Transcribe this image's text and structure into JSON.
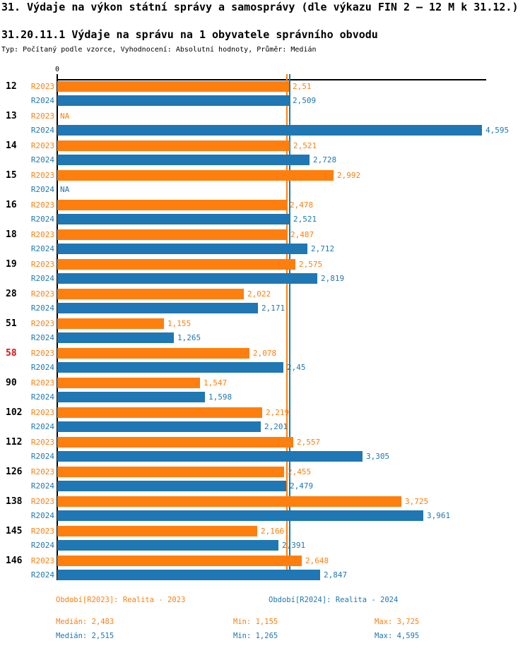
{
  "title": "31. Výdaje na výkon státní správy a samosprávy (dle výkazu FIN 2 – 12 M k 31.12.)",
  "subtitle": "31.20.11.1 Výdaje na správu na 1 obyvatele správního obvodu",
  "type_line": "Typ: Počítaný podle vzorce, Vyhodnocení: Absolutní hodnoty, Průměr: Medián",
  "colors": {
    "r2023": "#ff7f0e",
    "r2024": "#1f77b4",
    "highlight_id": "#e01010",
    "axis": "#000000"
  },
  "axis": {
    "zero_label": "0"
  },
  "series_labels": {
    "r2023": "R2023",
    "r2024": "R2024"
  },
  "rows": [
    {
      "id": "12",
      "highlight": false,
      "r2023": {
        "value": 2.51,
        "label": "2,51"
      },
      "r2024": {
        "value": 2.509,
        "label": "2,509"
      }
    },
    {
      "id": "13",
      "highlight": false,
      "r2023": {
        "value": null,
        "label": "NA"
      },
      "r2024": {
        "value": 4.595,
        "label": "4,595"
      }
    },
    {
      "id": "14",
      "highlight": false,
      "r2023": {
        "value": 2.521,
        "label": "2,521"
      },
      "r2024": {
        "value": 2.728,
        "label": "2,728"
      }
    },
    {
      "id": "15",
      "highlight": false,
      "r2023": {
        "value": 2.992,
        "label": "2,992"
      },
      "r2024": {
        "value": null,
        "label": "NA"
      }
    },
    {
      "id": "16",
      "highlight": false,
      "r2023": {
        "value": 2.478,
        "label": "2,478"
      },
      "r2024": {
        "value": 2.521,
        "label": "2,521"
      }
    },
    {
      "id": "18",
      "highlight": false,
      "r2023": {
        "value": 2.487,
        "label": "2,487"
      },
      "r2024": {
        "value": 2.712,
        "label": "2,712"
      }
    },
    {
      "id": "19",
      "highlight": false,
      "r2023": {
        "value": 2.575,
        "label": "2,575"
      },
      "r2024": {
        "value": 2.819,
        "label": "2,819"
      }
    },
    {
      "id": "28",
      "highlight": false,
      "r2023": {
        "value": 2.022,
        "label": "2,022"
      },
      "r2024": {
        "value": 2.171,
        "label": "2,171"
      }
    },
    {
      "id": "51",
      "highlight": false,
      "r2023": {
        "value": 1.155,
        "label": "1,155"
      },
      "r2024": {
        "value": 1.265,
        "label": "1,265"
      }
    },
    {
      "id": "58",
      "highlight": true,
      "r2023": {
        "value": 2.078,
        "label": "2,078"
      },
      "r2024": {
        "value": 2.45,
        "label": "2,45"
      }
    },
    {
      "id": "90",
      "highlight": false,
      "r2023": {
        "value": 1.547,
        "label": "1,547"
      },
      "r2024": {
        "value": 1.598,
        "label": "1,598"
      }
    },
    {
      "id": "102",
      "highlight": false,
      "r2023": {
        "value": 2.219,
        "label": "2,219"
      },
      "r2024": {
        "value": 2.201,
        "label": "2,201"
      }
    },
    {
      "id": "112",
      "highlight": false,
      "r2023": {
        "value": 2.557,
        "label": "2,557"
      },
      "r2024": {
        "value": 3.305,
        "label": "3,305"
      }
    },
    {
      "id": "126",
      "highlight": false,
      "r2023": {
        "value": 2.455,
        "label": "2,455"
      },
      "r2024": {
        "value": 2.479,
        "label": "2,479"
      }
    },
    {
      "id": "138",
      "highlight": false,
      "r2023": {
        "value": 3.725,
        "label": "3,725"
      },
      "r2024": {
        "value": 3.961,
        "label": "3,961"
      }
    },
    {
      "id": "145",
      "highlight": false,
      "r2023": {
        "value": 2.166,
        "label": "2,166"
      },
      "r2024": {
        "value": 2.391,
        "label": "2,391"
      }
    },
    {
      "id": "146",
      "highlight": false,
      "r2023": {
        "value": 2.648,
        "label": "2,648"
      },
      "r2024": {
        "value": 2.847,
        "label": "2,847"
      }
    }
  ],
  "medians": {
    "r2023": 2.483,
    "r2024": 2.515
  },
  "footer": {
    "period_r2023": "Období[R2023]: Realita - 2023",
    "period_r2024": "Období[R2024]: Realita - 2024",
    "stats_r2023": {
      "median": "Medián: 2,483",
      "min": "Min: 1,155",
      "max": "Max: 3,725"
    },
    "stats_r2024": {
      "median": "Medián: 2,515",
      "min": "Min: 1,265",
      "max": "Max: 4,595"
    }
  },
  "chart_data": {
    "type": "bar",
    "orientation": "horizontal",
    "title": "31.20.11.1 Výdaje na správu na 1 obyvatele správního obvodu",
    "categories": [
      "12",
      "13",
      "14",
      "15",
      "16",
      "18",
      "19",
      "28",
      "51",
      "58",
      "90",
      "102",
      "112",
      "126",
      "138",
      "145",
      "146"
    ],
    "series": [
      {
        "name": "R2023",
        "color": "#ff7f0e",
        "values": [
          2.51,
          null,
          2.521,
          2.992,
          2.478,
          2.487,
          2.575,
          2.022,
          1.155,
          2.078,
          1.547,
          2.219,
          2.557,
          2.455,
          3.725,
          2.166,
          2.648
        ]
      },
      {
        "name": "R2024",
        "color": "#1f77b4",
        "values": [
          2.509,
          4.595,
          2.728,
          null,
          2.521,
          2.712,
          2.819,
          2.171,
          1.265,
          2.45,
          1.598,
          2.201,
          3.305,
          2.479,
          3.961,
          2.391,
          2.847
        ]
      }
    ],
    "annotations": {
      "median_r2023": 2.483,
      "median_r2024": 2.515,
      "min_r2023": 1.155,
      "min_r2024": 1.265,
      "max_r2023": 3.725,
      "max_r2024": 4.595
    },
    "xlim": [
      0,
      4.65
    ],
    "grid": false,
    "legend_position": "bottom",
    "highlighted_category": "58",
    "na_label": "NA"
  }
}
